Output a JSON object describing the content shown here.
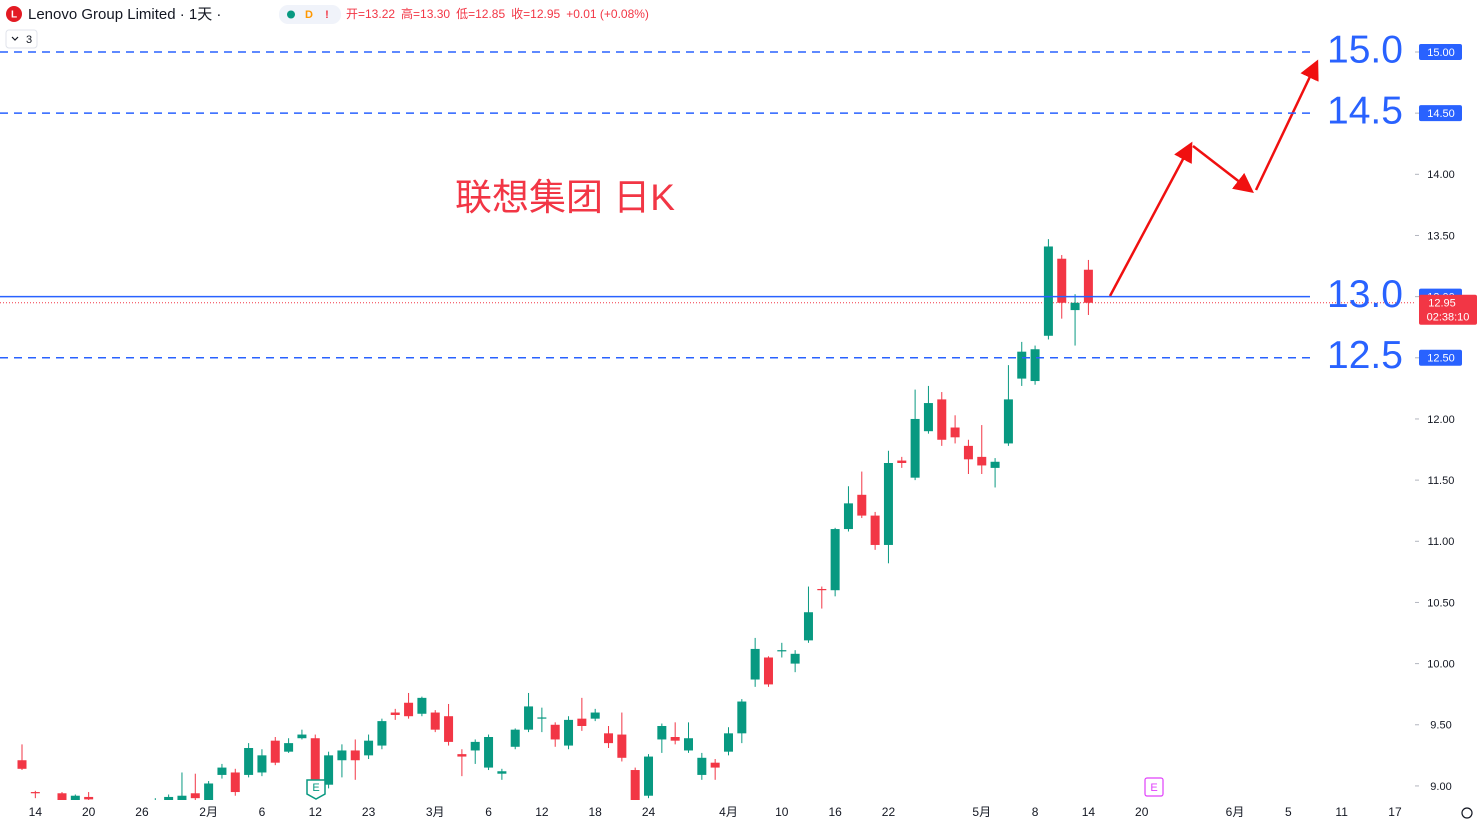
{
  "chart_data": {
    "type": "candlestick",
    "symbol": "Lenovo Group Limited · 1天 ·",
    "badges": [
      "D",
      "!"
    ],
    "ohlc_text": [
      "开=13.22",
      "高=13.30",
      "低=12.85",
      "收=12.95",
      "+0.01 (+0.08%)"
    ],
    "collapse_count": "3",
    "annotation": "联想集团 日K",
    "countdown": "02:38:10",
    "events": [
      "E",
      "E"
    ],
    "up_color": "#089981",
    "down_color": "#f23645",
    "line_color": "#2962ff",
    "categories": [
      null,
      "14",
      null,
      null,
      null,
      "20",
      null,
      null,
      null,
      "26",
      null,
      null,
      null,
      null,
      "2月",
      null,
      null,
      null,
      "6",
      null,
      null,
      null,
      "12",
      null,
      null,
      null,
      "23",
      null,
      null,
      null,
      null,
      "3月",
      null,
      null,
      null,
      "6",
      null,
      null,
      null,
      "12",
      null,
      null,
      null,
      "18",
      null,
      null,
      null,
      "24",
      null,
      null,
      null,
      null,
      null,
      "4月",
      null,
      null,
      null,
      "10",
      null,
      null,
      null,
      "16",
      null,
      null,
      null,
      "22",
      null,
      null,
      null,
      null,
      null,
      null,
      "5月",
      null,
      null,
      null,
      "8",
      null,
      null,
      null,
      "14",
      null,
      null,
      null,
      "20",
      null,
      null,
      null,
      null,
      null,
      null,
      "6月",
      null,
      null,
      null,
      "5",
      null,
      null,
      null,
      "11",
      null,
      null,
      null,
      "17"
    ],
    "open": [
      9.21,
      8.95,
      8.82,
      8.94,
      8.88,
      8.91,
      8.8,
      8.78,
      8.76,
      8.74,
      8.8,
      8.86,
      8.88,
      8.94,
      8.87,
      9.09,
      9.11,
      9.09,
      9.11,
      9.37,
      9.28,
      9.39,
      9.39,
      9.01,
      9.21,
      9.29,
      9.25,
      9.33,
      9.6,
      9.68,
      9.59,
      9.6,
      9.57,
      9.26,
      9.29,
      9.15,
      9.1,
      9.32,
      9.46,
      9.55,
      9.5,
      9.33,
      9.55,
      9.55,
      9.43,
      9.42,
      9.13,
      8.92,
      9.38,
      9.4,
      9.29,
      9.09,
      9.19,
      9.28,
      9.43,
      9.87,
      10.05,
      10.1,
      10.0,
      10.19,
      10.61,
      10.6,
      11.1,
      11.38,
      11.21,
      10.97,
      11.66,
      11.52,
      11.9,
      12.16,
      11.93,
      11.78,
      11.69,
      11.6,
      11.8,
      12.33,
      12.31,
      12.68,
      13.31,
      12.89,
      13.22,
      null,
      null,
      null,
      null,
      null,
      null,
      null,
      null,
      null,
      null,
      null,
      null,
      null,
      null,
      null,
      null,
      null,
      null,
      null,
      null,
      null,
      null,
      null
    ],
    "high": [
      9.34,
      8.96,
      8.86,
      8.95,
      8.93,
      8.95,
      8.85,
      8.84,
      8.8,
      8.82,
      8.9,
      8.93,
      9.11,
      9.1,
      9.04,
      9.18,
      9.14,
      9.35,
      9.3,
      9.4,
      9.39,
      9.46,
      9.42,
      9.28,
      9.34,
      9.38,
      9.42,
      9.55,
      9.63,
      9.76,
      9.73,
      9.62,
      9.67,
      9.3,
      9.38,
      9.42,
      9.14,
      9.47,
      9.76,
      9.64,
      9.52,
      9.57,
      9.72,
      9.63,
      9.49,
      9.6,
      9.15,
      9.26,
      9.51,
      9.52,
      9.52,
      9.27,
      9.22,
      9.48,
      9.71,
      10.21,
      10.06,
      10.17,
      10.11,
      10.63,
      10.63,
      11.11,
      11.45,
      11.57,
      11.24,
      11.74,
      11.69,
      12.24,
      12.27,
      12.22,
      12.03,
      11.83,
      11.95,
      11.68,
      12.44,
      12.63,
      12.6,
      13.47,
      13.34,
      13.02,
      13.3,
      null,
      null,
      null,
      null,
      null,
      null,
      null,
      null,
      null,
      null,
      null,
      null,
      null,
      null,
      null,
      null,
      null,
      null,
      null,
      null,
      null,
      null,
      null
    ],
    "low": [
      9.13,
      8.9,
      8.78,
      8.85,
      8.86,
      8.86,
      8.75,
      8.74,
      8.7,
      8.7,
      8.76,
      8.84,
      8.85,
      8.86,
      8.85,
      9.06,
      8.92,
      9.07,
      9.08,
      9.17,
      9.27,
      9.38,
      8.98,
      8.98,
      9.07,
      9.05,
      9.22,
      9.3,
      9.54,
      9.55,
      9.57,
      9.44,
      9.33,
      9.08,
      9.18,
      9.13,
      9.05,
      9.3,
      9.44,
      9.44,
      9.32,
      9.3,
      9.45,
      9.53,
      9.31,
      9.2,
      8.85,
      8.9,
      9.27,
      9.34,
      9.27,
      9.05,
      9.05,
      9.25,
      9.35,
      9.81,
      9.81,
      10.05,
      9.93,
      10.17,
      10.45,
      10.55,
      11.08,
      11.19,
      10.93,
      10.82,
      11.6,
      11.5,
      11.88,
      11.78,
      11.8,
      11.55,
      11.55,
      11.44,
      11.78,
      12.27,
      12.28,
      12.65,
      12.82,
      12.6,
      12.85,
      null,
      null,
      null,
      null,
      null,
      null,
      null,
      null,
      null,
      null,
      null,
      null,
      null,
      null,
      null,
      null,
      null,
      null,
      null,
      null,
      null,
      null,
      null
    ],
    "close": [
      9.14,
      8.94,
      8.8,
      8.88,
      8.92,
      8.89,
      8.82,
      8.8,
      8.74,
      8.78,
      8.82,
      8.91,
      8.92,
      8.9,
      9.02,
      9.15,
      8.95,
      9.31,
      9.25,
      9.19,
      9.35,
      9.42,
      9.01,
      9.25,
      9.29,
      9.21,
      9.37,
      9.53,
      9.58,
      9.57,
      9.72,
      9.46,
      9.36,
      9.24,
      9.36,
      9.4,
      9.12,
      9.46,
      9.65,
      9.56,
      9.38,
      9.54,
      9.49,
      9.6,
      9.35,
      9.23,
      8.88,
      9.24,
      9.49,
      9.37,
      9.39,
      9.23,
      9.15,
      9.43,
      9.69,
      10.12,
      9.83,
      10.11,
      10.08,
      10.42,
      10.6,
      11.1,
      11.31,
      11.21,
      10.97,
      11.64,
      11.64,
      12.0,
      12.13,
      11.83,
      11.85,
      11.67,
      11.62,
      11.65,
      12.16,
      12.55,
      12.57,
      13.41,
      12.95,
      12.95,
      12.95,
      null,
      null,
      null,
      null,
      null,
      null,
      null,
      null,
      null,
      null,
      null,
      null,
      null,
      null,
      null,
      null,
      null,
      null,
      null,
      null,
      null,
      null,
      null
    ],
    "ylim": [
      8.885,
      15.425
    ],
    "yticks": [
      {
        "value": 9,
        "label": "9.00"
      },
      {
        "value": 9.5,
        "label": "9.50"
      },
      {
        "value": 10,
        "label": "10.00"
      },
      {
        "value": 10.5,
        "label": "10.50"
      },
      {
        "value": 11,
        "label": "11.00"
      },
      {
        "value": 11.5,
        "label": "11.50"
      },
      {
        "value": 12,
        "label": "12.00"
      },
      {
        "value": 12.5,
        "label": "12.50"
      },
      {
        "value": 13,
        "label": "13.00"
      },
      {
        "value": 13.5,
        "label": "13.50"
      },
      {
        "value": 14,
        "label": "14.00"
      },
      {
        "value": 14.5,
        "label": "14.50"
      },
      {
        "value": 15,
        "label": "15.00"
      }
    ],
    "horizontal_lines": [
      {
        "value": 15,
        "label": "15.0",
        "style": "dashed"
      },
      {
        "value": 14.5,
        "label": "14.5",
        "style": "dashed"
      },
      {
        "value": 13,
        "label": "13.0",
        "style": "solid"
      },
      {
        "value": 12.5,
        "label": "12.5",
        "style": "dashed"
      }
    ],
    "grid": false
  }
}
